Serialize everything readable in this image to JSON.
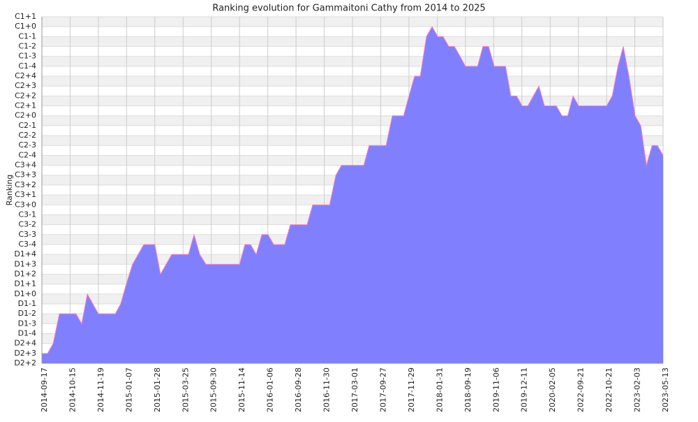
{
  "chart_data": {
    "type": "area",
    "title": "Ranking evolution for Gammaitoni Cathy from 2014 to 2025",
    "y_label": "Ranking",
    "color": "#8080ff",
    "line_color": "#ff80c0",
    "grid": true,
    "xlim": [
      0,
      22
    ],
    "xticks": [
      {
        "value": 0,
        "label": "2014-09-17"
      },
      {
        "value": 1,
        "label": "2014-10-15"
      },
      {
        "value": 2,
        "label": "2014-11-19"
      },
      {
        "value": 3,
        "label": "2015-01-07"
      },
      {
        "value": 4,
        "label": "2015-01-28"
      },
      {
        "value": 5,
        "label": "2015-03-25"
      },
      {
        "value": 6,
        "label": "2015-09-30"
      },
      {
        "value": 7,
        "label": "2015-11-14"
      },
      {
        "value": 8,
        "label": "2016-01-06"
      },
      {
        "value": 9,
        "label": "2016-09-28"
      },
      {
        "value": 10,
        "label": "2016-11-30"
      },
      {
        "value": 11,
        "label": "2017-03-01"
      },
      {
        "value": 12,
        "label": "2017-09-27"
      },
      {
        "value": 13,
        "label": "2017-11-29"
      },
      {
        "value": 14,
        "label": "2018-01-31"
      },
      {
        "value": 15,
        "label": "2018-09-19"
      },
      {
        "value": 16,
        "label": "2019-11-06"
      },
      {
        "value": 17,
        "label": "2019-12-11"
      },
      {
        "value": 18,
        "label": "2020-02-05"
      },
      {
        "value": 19,
        "label": "2022-09-21"
      },
      {
        "value": 20,
        "label": "2022-10-21"
      },
      {
        "value": 21,
        "label": "2023-02-03"
      },
      {
        "value": 22,
        "label": "2023-05-13"
      }
    ],
    "ylim": [
      0,
      35
    ],
    "yticks": [
      {
        "value": 0,
        "label": "D2+2"
      },
      {
        "value": 1,
        "label": "D2+3"
      },
      {
        "value": 2,
        "label": "D2+4"
      },
      {
        "value": 3,
        "label": "D1-4"
      },
      {
        "value": 4,
        "label": "D1-3"
      },
      {
        "value": 5,
        "label": "D1-2"
      },
      {
        "value": 6,
        "label": "D1-1"
      },
      {
        "value": 7,
        "label": "D1+0"
      },
      {
        "value": 8,
        "label": "D1+1"
      },
      {
        "value": 9,
        "label": "D1+2"
      },
      {
        "value": 10,
        "label": "D1+3"
      },
      {
        "value": 11,
        "label": "D1+4"
      },
      {
        "value": 12,
        "label": "C3-4"
      },
      {
        "value": 13,
        "label": "C3-3"
      },
      {
        "value": 14,
        "label": "C3-2"
      },
      {
        "value": 15,
        "label": "C3-1"
      },
      {
        "value": 16,
        "label": "C3+0"
      },
      {
        "value": 17,
        "label": "C3+1"
      },
      {
        "value": 18,
        "label": "C3+2"
      },
      {
        "value": 19,
        "label": "C3+3"
      },
      {
        "value": 20,
        "label": "C3+4"
      },
      {
        "value": 21,
        "label": "C2-4"
      },
      {
        "value": 22,
        "label": "C2-3"
      },
      {
        "value": 23,
        "label": "C2-2"
      },
      {
        "value": 24,
        "label": "C2-1"
      },
      {
        "value": 25,
        "label": "C2+0"
      },
      {
        "value": 26,
        "label": "C2+1"
      },
      {
        "value": 27,
        "label": "C2+2"
      },
      {
        "value": 28,
        "label": "C2+3"
      },
      {
        "value": 29,
        "label": "C2+4"
      },
      {
        "value": 30,
        "label": "C1-4"
      },
      {
        "value": 31,
        "label": "C1-3"
      },
      {
        "value": 32,
        "label": "C1-2"
      },
      {
        "value": 33,
        "label": "C1-1"
      },
      {
        "value": 34,
        "label": "C1+0"
      },
      {
        "value": 35,
        "label": "C1+1"
      }
    ],
    "x": [
      0,
      0.2,
      0.4,
      0.62,
      1.21,
      1.41,
      1.61,
      2.0,
      2.6,
      2.79,
      2.99,
      3.21,
      3.61,
      4.0,
      4.2,
      4.6,
      5.19,
      5.39,
      5.59,
      5.81,
      7.0,
      7.19,
      7.39,
      7.59,
      7.79,
      8.01,
      8.21,
      8.6,
      8.8,
      9.39,
      9.59,
      10.19,
      10.41,
      10.61,
      11.4,
      11.59,
      12.19,
      12.41,
      12.81,
      13.0,
      13.2,
      13.4,
      13.62,
      13.82,
      14.02,
      14.21,
      14.41,
      14.61,
      14.81,
      15.0,
      15.43,
      15.62,
      15.82,
      16.02,
      16.42,
      16.61,
      16.81,
      17.01,
      17.21,
      17.6,
      17.8,
      18.22,
      18.42,
      18.62,
      18.81,
      19.01,
      20.0,
      20.2,
      20.4,
      20.59,
      20.79,
      21.01,
      21.21,
      21.41,
      21.61,
      21.8,
      22.0
    ],
    "values": [
      1,
      1,
      2,
      5,
      5,
      4,
      7,
      5,
      5,
      6,
      8,
      10,
      12,
      12,
      9,
      11,
      11,
      13,
      11,
      10,
      10,
      12,
      12,
      11,
      13,
      13,
      12,
      12,
      14,
      14,
      16,
      16,
      19,
      20,
      20,
      22,
      22,
      25,
      25,
      27,
      29,
      29,
      33,
      34,
      33,
      33,
      32,
      32,
      31,
      30,
      30,
      32,
      32,
      30,
      30,
      27,
      27,
      26,
      26,
      28,
      26,
      26,
      25,
      25,
      27,
      26,
      26,
      27,
      30,
      32,
      29,
      25,
      24,
      20,
      22,
      22,
      21
    ]
  }
}
